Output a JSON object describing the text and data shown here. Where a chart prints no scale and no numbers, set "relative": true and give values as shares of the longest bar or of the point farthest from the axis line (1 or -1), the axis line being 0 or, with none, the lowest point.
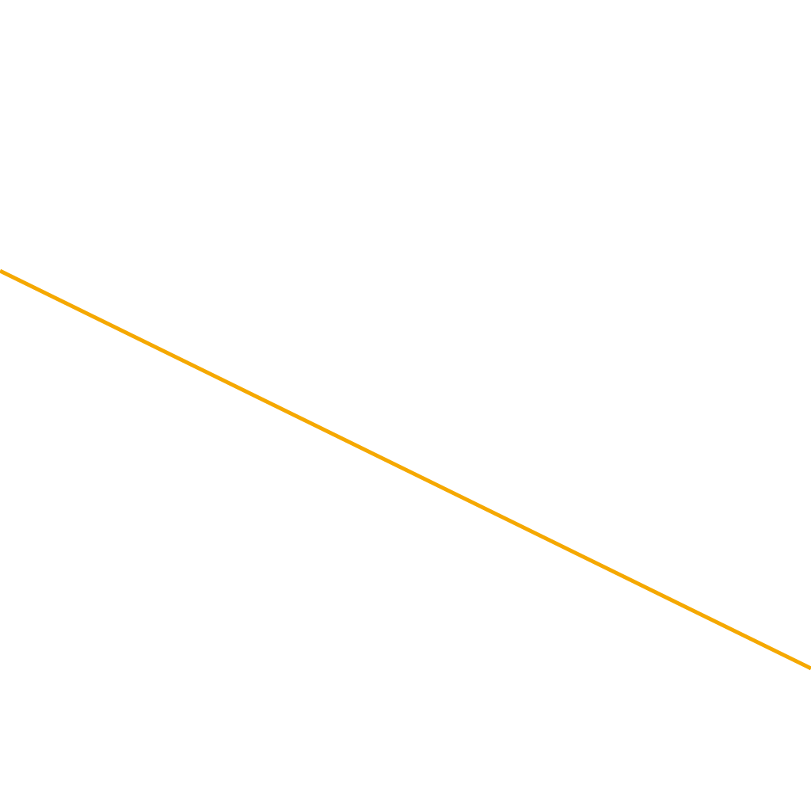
{
  "chart_data": {
    "type": "line",
    "relative": true,
    "categories": [
      null,
      null
    ],
    "series": [
      {
        "color": "#f5a800",
        "values": [
          1,
          0
        ]
      }
    ],
    "legend": false,
    "marker": "none",
    "line_style": "solid"
  }
}
